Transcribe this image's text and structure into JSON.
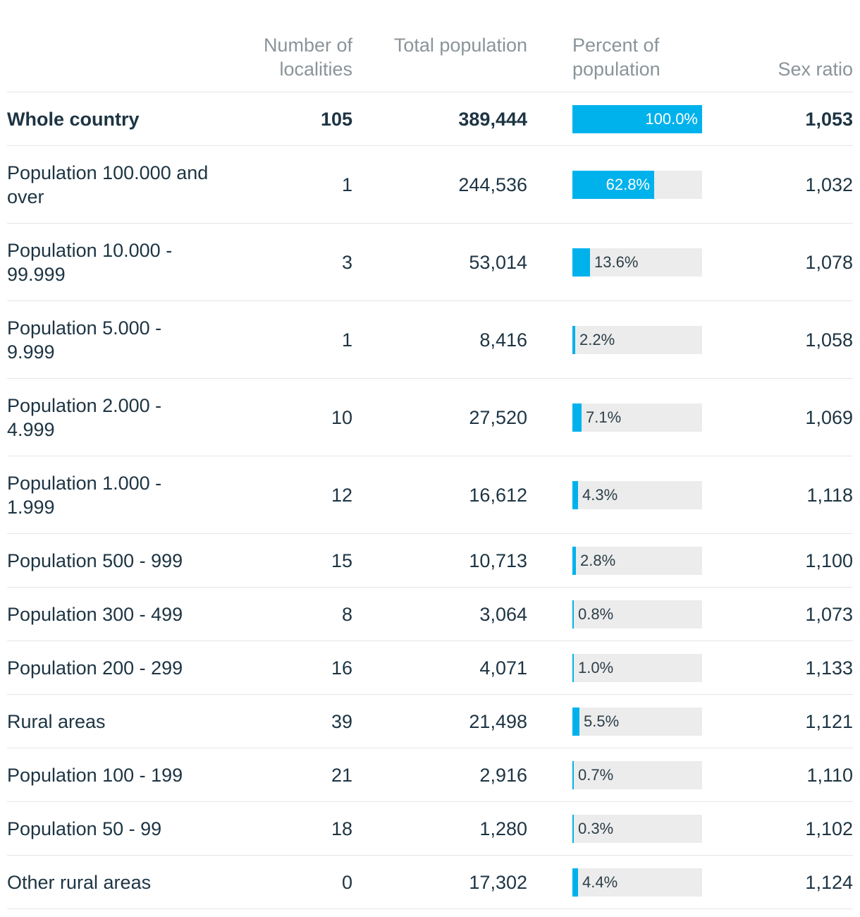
{
  "colors": {
    "bar": "#00b2ec",
    "track": "#ececec",
    "text": "#1d3443",
    "header": "#8a9499"
  },
  "chart_data": {
    "type": "table",
    "columns": [
      {
        "id": "localities",
        "label": "Number of localities"
      },
      {
        "id": "total",
        "label": "Total population"
      },
      {
        "id": "percent",
        "label": "Percent of population"
      },
      {
        "id": "sex_ratio",
        "label": "Sex ratio"
      }
    ],
    "header": {
      "localities_label": "Number of localities",
      "total_label": "Total population",
      "percent_label": "Percent of population",
      "sex_ratio_label": "Sex ratio"
    },
    "rows": [
      {
        "label": "Whole country",
        "localities": "105",
        "total": "389,444",
        "percent": 100.0,
        "percent_label": "100.0%",
        "sex_ratio": "1,053",
        "bold": true
      },
      {
        "label": "Population 100.000 and over",
        "localities": "1",
        "total": "244,536",
        "percent": 62.8,
        "percent_label": "62.8%",
        "sex_ratio": "1,032"
      },
      {
        "label": "Population 10.000 - 99.999",
        "localities": "3",
        "total": "53,014",
        "percent": 13.6,
        "percent_label": "13.6%",
        "sex_ratio": "1,078"
      },
      {
        "label": "Population 5.000 - 9.999",
        "localities": "1",
        "total": "8,416",
        "percent": 2.2,
        "percent_label": "2.2%",
        "sex_ratio": "1,058"
      },
      {
        "label": "Population 2.000 - 4.999",
        "localities": "10",
        "total": "27,520",
        "percent": 7.1,
        "percent_label": "7.1%",
        "sex_ratio": "1,069"
      },
      {
        "label": "Population 1.000 - 1.999",
        "localities": "12",
        "total": "16,612",
        "percent": 4.3,
        "percent_label": "4.3%",
        "sex_ratio": "1,118"
      },
      {
        "label": "Population 500 - 999",
        "localities": "15",
        "total": "10,713",
        "percent": 2.8,
        "percent_label": "2.8%",
        "sex_ratio": "1,100"
      },
      {
        "label": "Population 300 - 499",
        "localities": "8",
        "total": "3,064",
        "percent": 0.8,
        "percent_label": "0.8%",
        "sex_ratio": "1,073"
      },
      {
        "label": "Population 200 - 299",
        "localities": "16",
        "total": "4,071",
        "percent": 1.0,
        "percent_label": "1.0%",
        "sex_ratio": "1,133"
      },
      {
        "label": "Rural areas",
        "localities": "39",
        "total": "21,498",
        "percent": 5.5,
        "percent_label": "5.5%",
        "sex_ratio": "1,121"
      },
      {
        "label": "Population 100 - 199",
        "localities": "21",
        "total": "2,916",
        "percent": 0.7,
        "percent_label": "0.7%",
        "sex_ratio": "1,110"
      },
      {
        "label": "Population 50 - 99",
        "localities": "18",
        "total": "1,280",
        "percent": 0.3,
        "percent_label": "0.3%",
        "sex_ratio": "1,102"
      },
      {
        "label": "Other rural areas",
        "localities": "0",
        "total": "17,302",
        "percent": 4.4,
        "percent_label": "4.4%",
        "sex_ratio": "1,124"
      }
    ],
    "percent_range": [
      0,
      100
    ]
  }
}
